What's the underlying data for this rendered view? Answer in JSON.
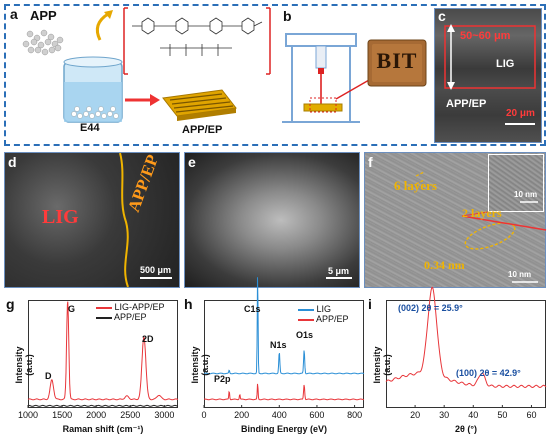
{
  "panels": {
    "a": {
      "letter": "a",
      "app_label": "APP",
      "e44_label": "E44",
      "product_label": "APP/EP"
    },
    "b": {
      "letter": "b",
      "logo_text": "BIT"
    },
    "c": {
      "letter": "c",
      "thickness": "50~60 μm",
      "lig": "LIG",
      "app_ep": "APP/EP",
      "scale": "20 μm"
    },
    "d": {
      "letter": "d",
      "lig": "LIG",
      "app_ep": "APP/EP",
      "scale": "500 μm"
    },
    "e": {
      "letter": "e",
      "scale": "5 μm"
    },
    "f": {
      "letter": "f",
      "six_layers": "6 layers",
      "two_layers": "2 layers",
      "spacing": "0.34 nm",
      "scale_top": "10 nm",
      "scale_bottom": "10 nm"
    },
    "g": {
      "letter": "g",
      "legend": [
        "LIG-APP/EP",
        "APP/EP"
      ],
      "peaks": [
        "D",
        "G",
        "2D"
      ]
    },
    "h": {
      "letter": "h",
      "legend": [
        "LIG",
        "APP/EP"
      ],
      "peaks": [
        "C1s",
        "N1s",
        "O1s",
        "P2p"
      ]
    },
    "i": {
      "letter": "i",
      "annotations": [
        "(002) 2θ = 25.9°",
        "(100) 2θ = 42.9°"
      ]
    }
  },
  "chart_data": [
    {
      "type": "line",
      "panel": "g",
      "xlabel": "Raman shift (cm⁻¹)",
      "ylabel": "Intensity (a.u.)",
      "xlim": [
        1000,
        3200
      ],
      "xticks": [
        1000,
        1500,
        2000,
        2500,
        3000
      ],
      "series": [
        {
          "name": "LIG-APP/EP",
          "color": "#e8363a",
          "peaks": [
            {
              "x": 1350,
              "h": 0.18,
              "w": 35
            },
            {
              "x": 1582,
              "h": 0.92,
              "w": 22
            },
            {
              "x": 2700,
              "h": 0.58,
              "w": 40
            },
            {
              "x": 2450,
              "h": 0.03,
              "w": 40
            },
            {
              "x": 2920,
              "h": 0.04,
              "w": 40
            }
          ]
        },
        {
          "name": "APP/EP",
          "color": "#222222",
          "peaks": []
        }
      ]
    },
    {
      "type": "line",
      "panel": "h",
      "xlabel": "Binding Energy (eV)",
      "ylabel": "Intensity (a.u.)",
      "xlim": [
        0,
        850
      ],
      "xticks": [
        0,
        200,
        400,
        600,
        800
      ],
      "series": [
        {
          "name": "LIG",
          "color": "#2b8fd6",
          "peaks": [
            {
              "x": 285,
              "h": 0.95,
              "w": 3
            },
            {
              "x": 400,
              "h": 0.2,
              "w": 4
            },
            {
              "x": 532,
              "h": 0.22,
              "w": 4
            },
            {
              "x": 134,
              "h": 0.03,
              "w": 3
            }
          ]
        },
        {
          "name": "APP/EP",
          "color": "#e8363a",
          "peaks": [
            {
              "x": 134,
              "h": 0.08,
              "w": 3
            },
            {
              "x": 190,
              "h": 0.05,
              "w": 3
            },
            {
              "x": 285,
              "h": 0.15,
              "w": 3
            },
            {
              "x": 532,
              "h": 0.14,
              "w": 4
            }
          ]
        }
      ]
    },
    {
      "type": "line",
      "panel": "i",
      "xlabel": "2θ (°)",
      "ylabel": "Intensity (a.u.)",
      "xlim": [
        10,
        65
      ],
      "xticks": [
        20,
        30,
        40,
        50,
        60
      ],
      "series": [
        {
          "name": "",
          "color": "#e8363a",
          "peaks": [
            {
              "x": 25.9,
              "h": 0.8,
              "w": 2.2
            },
            {
              "x": 42.9,
              "h": 0.12,
              "w": 1.5
            }
          ]
        }
      ]
    }
  ]
}
